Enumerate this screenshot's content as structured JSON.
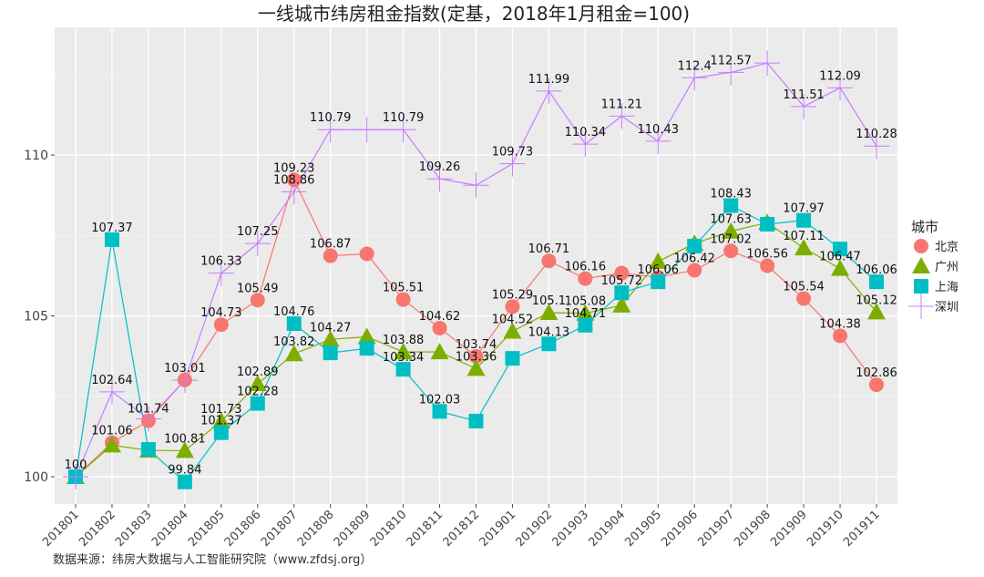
{
  "chart_data": {
    "type": "line",
    "title": "一线城市纬房租金指数(定基，2018年1月租金=100)",
    "xlabel": "",
    "ylabel": "",
    "categories": [
      "201801",
      "201802",
      "201803",
      "201804",
      "201805",
      "201806",
      "201807",
      "201808",
      "201809",
      "201810",
      "201811",
      "201812",
      "201901",
      "201902",
      "201903",
      "201904",
      "201905",
      "201906",
      "201907",
      "201908",
      "201909",
      "201910",
      "201911"
    ],
    "yticks": [
      100,
      105,
      110
    ],
    "ylim": [
      99.15,
      113.97
    ],
    "grid": true,
    "legend": {
      "title": "城市",
      "placement": "right"
    },
    "series": [
      {
        "name": "北京",
        "color": "#F8766D",
        "marker": "circle",
        "values": [
          100,
          101.06,
          101.74,
          103.01,
          104.73,
          105.49,
          109.23,
          106.87,
          106.93,
          105.51,
          104.62,
          103.74,
          105.29,
          106.71,
          106.16,
          106.33,
          106.2,
          106.42,
          107.02,
          106.56,
          105.54,
          104.38,
          102.86
        ],
        "labeled": [
          "201801",
          "201802",
          "201803",
          "201804",
          "201805",
          "201806",
          "201807",
          "201808",
          "201810",
          "201811",
          "201812",
          "201901",
          "201902",
          "201903",
          "201906",
          "201907",
          "201908",
          "201909",
          "201910",
          "201911"
        ]
      },
      {
        "name": "广州",
        "color": "#7CAE00",
        "marker": "triangle",
        "values": [
          100,
          100.98,
          100.82,
          100.81,
          101.73,
          102.89,
          103.82,
          104.27,
          104.35,
          103.88,
          103.88,
          103.36,
          104.52,
          105.1,
          105.08,
          105.33,
          106.69,
          107.25,
          107.63,
          107.9,
          107.11,
          106.47,
          105.12
        ],
        "labeled": [
          "201804",
          "201805",
          "201806",
          "201807",
          "201808",
          "201810",
          "201812",
          "201901",
          "201902",
          "201903",
          "201907",
          "201909",
          "201910",
          "201911"
        ]
      },
      {
        "name": "上海",
        "color": "#00BFC4",
        "marker": "square",
        "values": [
          100,
          107.37,
          100.85,
          99.84,
          101.37,
          102.28,
          104.76,
          103.85,
          103.99,
          103.34,
          102.03,
          101.73,
          103.68,
          104.13,
          104.71,
          105.72,
          106.06,
          107.17,
          108.43,
          107.85,
          107.97,
          107.08,
          106.06
        ],
        "labeled": [
          "201802",
          "201804",
          "201805",
          "201806",
          "201807",
          "201810",
          "201811",
          "201902",
          "201903",
          "201904",
          "201905",
          "201907",
          "201909",
          "201911"
        ]
      },
      {
        "name": "深圳",
        "color": "#C77CFF",
        "marker": "cross",
        "values": [
          100,
          102.64,
          101.8,
          103.0,
          106.33,
          107.25,
          108.86,
          110.79,
          110.79,
          110.79,
          109.26,
          109.06,
          109.73,
          111.99,
          110.34,
          111.21,
          110.43,
          112.4,
          112.57,
          112.86,
          111.51,
          112.09,
          110.28
        ],
        "labeled": [
          "201802",
          "201805",
          "201806",
          "201807",
          "201808",
          "201810",
          "201811",
          "201901",
          "201902",
          "201903",
          "201904",
          "201905",
          "201906",
          "201907",
          "201909",
          "201910",
          "201911"
        ]
      }
    ]
  },
  "source": "数据来源：纬房大数据与人工智能研究院（www.zfdsj.org）"
}
